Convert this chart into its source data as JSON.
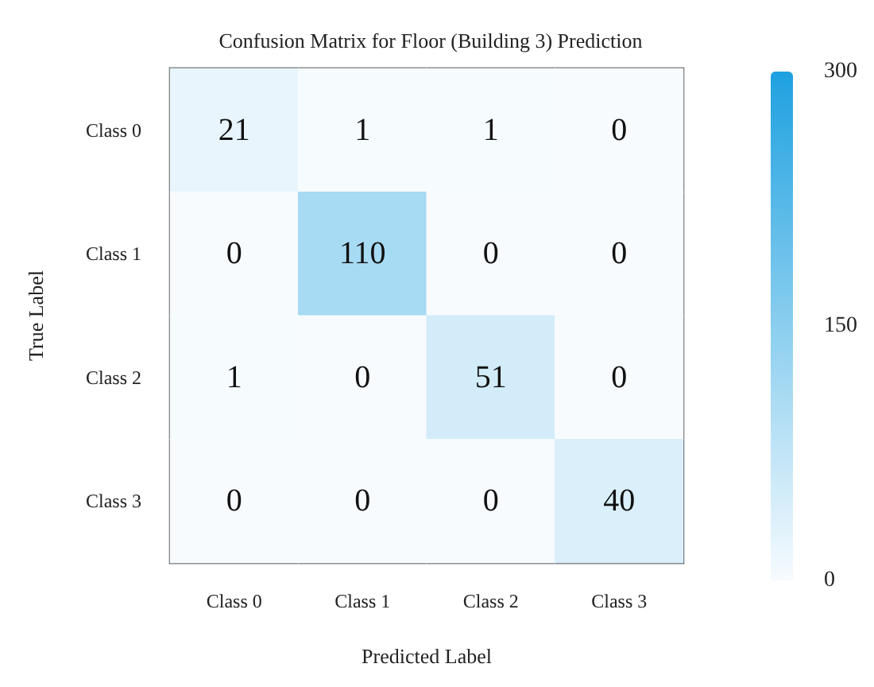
{
  "chart_data": {
    "type": "heatmap",
    "title": "Confusion Matrix for Floor (Building 3) Prediction",
    "xlabel": "Predicted Label",
    "ylabel": "True Label",
    "categories": [
      "Class 0",
      "Class 1",
      "Class 2",
      "Class 3"
    ],
    "y_categories": [
      "Class 0",
      "Class 1",
      "Class 2",
      "Class 3"
    ],
    "cells": [
      [
        21,
        1,
        1,
        0
      ],
      [
        0,
        110,
        0,
        0
      ],
      [
        1,
        0,
        51,
        0
      ],
      [
        0,
        0,
        0,
        40
      ]
    ],
    "clim": [
      0,
      300
    ],
    "cticks": [
      0,
      150,
      300
    ],
    "data_labels": true
  }
}
